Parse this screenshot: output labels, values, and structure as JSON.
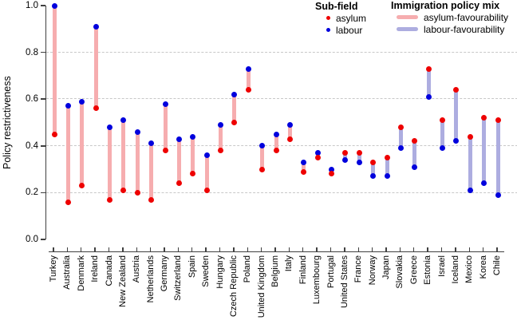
{
  "chart_data": {
    "type": "scatter",
    "subtype": "dumbbell-dotplot",
    "title": "",
    "xlabel": "",
    "ylabel": "Policy restrictiveness",
    "ylim": [
      0.0,
      1.0
    ],
    "yticks": [
      "0.0",
      "0.2",
      "0.4",
      "0.6",
      "0.8",
      "1.0"
    ],
    "grid": "horizontal-dashed-at-0.2-0.4-0.6-0.8",
    "legend_position": "top-right",
    "categories": [
      "Turkey",
      "Australia",
      "Denmark",
      "Ireland",
      "Canada",
      "New Zealand",
      "Austria",
      "Netherlands",
      "Germany",
      "Switzerland",
      "Spain",
      "Sweden",
      "Hungary",
      "Czech Republic",
      "Poland",
      "United Kingdom",
      "Belgium",
      "Italy",
      "Finland",
      "Luxembourg",
      "Portugal",
      "United States",
      "France",
      "Norway",
      "Japan",
      "Slovakia",
      "Greece",
      "Estonia",
      "Israel",
      "Iceland",
      "Mexico",
      "Korea",
      "Chile"
    ],
    "series": [
      {
        "name": "asylum",
        "color": "#EE0000",
        "values": [
          0.45,
          0.16,
          0.23,
          0.56,
          0.17,
          0.21,
          0.2,
          0.17,
          0.38,
          0.24,
          0.28,
          0.21,
          0.38,
          0.5,
          0.64,
          0.3,
          0.38,
          0.43,
          0.29,
          0.35,
          0.28,
          0.37,
          0.37,
          0.33,
          0.35,
          0.48,
          0.42,
          0.73,
          0.51,
          0.64,
          0.44,
          0.52,
          0.51
        ]
      },
      {
        "name": "labour",
        "color": "#0000DD",
        "values": [
          1.0,
          0.57,
          0.59,
          0.91,
          0.48,
          0.51,
          0.46,
          0.41,
          0.58,
          0.43,
          0.44,
          0.36,
          0.49,
          0.62,
          0.73,
          0.4,
          0.45,
          0.49,
          0.33,
          0.37,
          0.3,
          0.34,
          0.33,
          0.27,
          0.27,
          0.39,
          0.31,
          0.61,
          0.39,
          0.42,
          0.21,
          0.24,
          0.19
        ]
      }
    ],
    "mix": [
      "asylum-favourability",
      "asylum-favourability",
      "asylum-favourability",
      "asylum-favourability",
      "asylum-favourability",
      "asylum-favourability",
      "asylum-favourability",
      "asylum-favourability",
      "asylum-favourability",
      "asylum-favourability",
      "asylum-favourability",
      "asylum-favourability",
      "asylum-favourability",
      "asylum-favourability",
      "asylum-favourability",
      "asylum-favourability",
      "asylum-favourability",
      "asylum-favourability",
      "asylum-favourability",
      "asylum-favourability",
      "asylum-favourability",
      "labour-favourability",
      "labour-favourability",
      "labour-favourability",
      "labour-favourability",
      "labour-favourability",
      "labour-favourability",
      "labour-favourability",
      "labour-favourability",
      "labour-favourability",
      "labour-favourability",
      "labour-favourability",
      "labour-favourability"
    ],
    "bar_colors": {
      "asylum-favourability": "#F6ADAF",
      "labour-favourability": "#ADADE0"
    }
  },
  "colors": {
    "axis": "#404040",
    "gridline": "#C8C8C8",
    "text": "#000000"
  },
  "legend_subfield": {
    "title": "Sub-field",
    "items": [
      {
        "label": "asylum",
        "color": "#EE0000"
      },
      {
        "label": "labour",
        "color": "#0000DD"
      }
    ]
  },
  "legend_mix": {
    "title": "Immigration policy mix",
    "items": [
      {
        "label": "asylum-favourability",
        "color": "#F6ADAF"
      },
      {
        "label": "labour-favourability",
        "color": "#ADADE0"
      }
    ]
  }
}
